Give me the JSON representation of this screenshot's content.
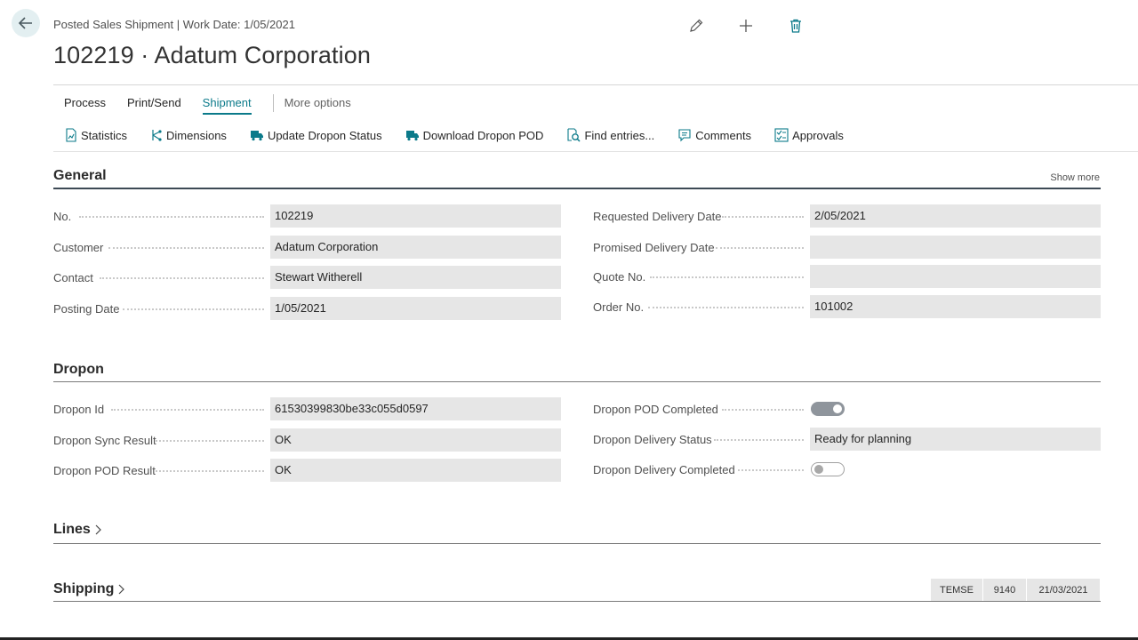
{
  "header": {
    "breadcrumb": "Posted Sales Shipment | Work Date: 1/05/2021",
    "title": "102219 · Adatum Corporation",
    "top_actions": [
      {
        "icon": "pencil-icon"
      },
      {
        "icon": "plus-icon"
      },
      {
        "icon": "trash-icon"
      }
    ]
  },
  "menu": {
    "items": [
      "Process",
      "Print/Send",
      "Shipment"
    ],
    "active": "Shipment",
    "more": "More options"
  },
  "actions": [
    {
      "label": "Statistics",
      "icon": "statistics-icon"
    },
    {
      "label": "Dimensions",
      "icon": "dimensions-icon"
    },
    {
      "label": "Update Dropon Status",
      "icon": "truck-icon"
    },
    {
      "label": "Download Dropon POD",
      "icon": "truck-icon"
    },
    {
      "label": "Find entries...",
      "icon": "find-entries-icon"
    },
    {
      "label": "Comments",
      "icon": "comments-icon"
    },
    {
      "label": "Approvals",
      "icon": "approvals-icon"
    }
  ],
  "general": {
    "title": "General",
    "show_more": "Show more",
    "left": [
      {
        "label": "No.",
        "value": "102219"
      },
      {
        "label": "Customer",
        "value": "Adatum Corporation"
      },
      {
        "label": "Contact",
        "value": "Stewart Witherell"
      },
      {
        "label": "Posting Date",
        "value": "1/05/2021"
      }
    ],
    "right": [
      {
        "label": "Requested Delivery Date",
        "value": "2/05/2021"
      },
      {
        "label": "Promised Delivery Date",
        "value": ""
      },
      {
        "label": "Quote No.",
        "value": ""
      },
      {
        "label": "Order No.",
        "value": "101002"
      }
    ]
  },
  "dropon": {
    "title": "Dropon",
    "left": [
      {
        "label": "Dropon Id",
        "value": "61530399830be33c055d0597"
      },
      {
        "label": "Dropon Sync Result",
        "value": "OK"
      },
      {
        "label": "Dropon POD Result",
        "value": "OK"
      }
    ],
    "right": [
      {
        "label": "Dropon POD Completed",
        "toggle": true
      },
      {
        "label": "Dropon Delivery Status",
        "value": "Ready for planning"
      },
      {
        "label": "Dropon Delivery Completed",
        "toggle": false
      }
    ]
  },
  "lines": {
    "title": "Lines"
  },
  "shipping": {
    "title": "Shipping",
    "tags": [
      "TEMSE",
      "9140",
      "21/03/2021"
    ]
  },
  "colors": {
    "accent": "#0b7a8a",
    "field_bg": "#e6e6e6",
    "back_bg": "#e3eff1"
  }
}
